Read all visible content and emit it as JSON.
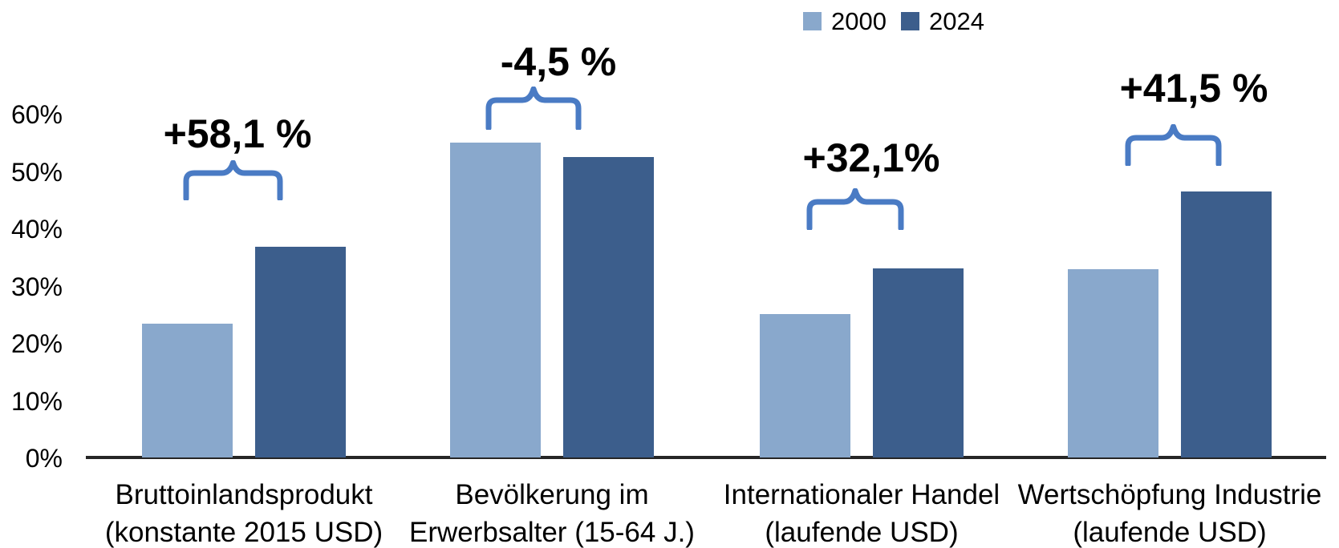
{
  "legend": {
    "position": "top-center"
  },
  "chart_data": {
    "type": "bar",
    "title": "",
    "categories": [
      {
        "line1": "Bruttoinlandsprodukt",
        "line2": "(konstante 2015 USD)"
      },
      {
        "line1": "Bevölkerung im",
        "line2": "Erwerbsalter (15-64 J.)"
      },
      {
        "line1": "Internationaler Handel",
        "line2": "(laufende USD)"
      },
      {
        "line1": "Wertschöpfung Industrie",
        "line2": "(laufende USD)"
      }
    ],
    "series": [
      {
        "name": "2000",
        "color": "#89A8CC",
        "values": [
          23.3,
          55.0,
          25.0,
          32.8
        ]
      },
      {
        "name": "2024",
        "color": "#3C5E8C",
        "values": [
          36.8,
          52.5,
          33.0,
          46.4
        ]
      }
    ],
    "annotations": [
      "+58,1 %",
      "-4,5 %",
      "+32,1%",
      "+41,5 %"
    ],
    "xlabel": "",
    "ylabel": "",
    "ylim": [
      0,
      60
    ],
    "yticks": [
      "0%",
      "10%",
      "20%",
      "30%",
      "40%",
      "50%",
      "60%"
    ],
    "grid": "off",
    "legend_position": "top-center",
    "unit": "percent",
    "colors": {
      "annotation_brace": "#4A7BC4",
      "axis_line": "#262626",
      "text": "#000000"
    }
  }
}
